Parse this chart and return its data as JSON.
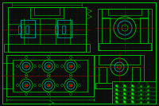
{
  "bg_color": "#0d0d0d",
  "line_color": "#00cc00",
  "cyan_color": "#00bbbb",
  "red_color": "#cc0000",
  "dim_color": "#00aa00",
  "title_block_color": "#00bb00",
  "dot_color": "#003300",
  "fig_width": 2.0,
  "fig_height": 1.33,
  "dpi": 100
}
